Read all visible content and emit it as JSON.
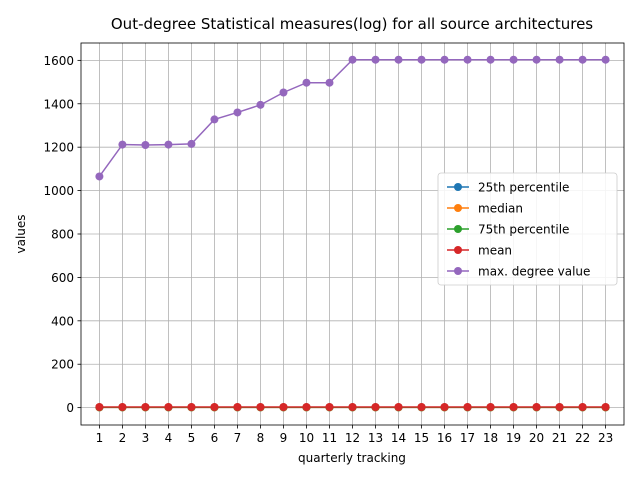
{
  "chart_data": {
    "type": "line",
    "title": "Out-degree Statistical measures(log) for all source architectures",
    "xlabel": "quarterly tracking",
    "ylabel": "values",
    "x": [
      1,
      2,
      3,
      4,
      5,
      6,
      7,
      8,
      9,
      10,
      11,
      12,
      13,
      14,
      15,
      16,
      17,
      18,
      19,
      20,
      21,
      22,
      23
    ],
    "xlim": [
      0.2,
      23.8
    ],
    "ylim": [
      -80,
      1680
    ],
    "yticks": [
      0,
      200,
      400,
      600,
      800,
      1000,
      1200,
      1400,
      1600
    ],
    "grid": true,
    "legend_position": "center-right",
    "series": [
      {
        "name": "25th percentile",
        "color": "#1f77b4",
        "values": [
          1,
          1,
          1,
          1,
          1,
          1,
          1,
          1,
          1,
          1,
          1,
          1,
          1,
          1,
          1,
          1,
          1,
          1,
          1,
          1,
          1,
          1,
          1
        ]
      },
      {
        "name": "median",
        "color": "#ff7f0e",
        "values": [
          1,
          1,
          1,
          1,
          1,
          1,
          1,
          1,
          1,
          1,
          1,
          1,
          1,
          1,
          1,
          1,
          1,
          1,
          1,
          1,
          1,
          1,
          1
        ]
      },
      {
        "name": "75th percentile",
        "color": "#2ca02c",
        "values": [
          2,
          2,
          2,
          2,
          2,
          2,
          2,
          2,
          2,
          2,
          2,
          2,
          2,
          2,
          2,
          2,
          2,
          2,
          2,
          2,
          2,
          2,
          2
        ]
      },
      {
        "name": "mean",
        "color": "#d62728",
        "values": [
          3,
          3,
          3,
          3,
          3,
          3,
          3,
          3,
          3,
          3,
          3,
          3,
          3,
          3,
          3,
          3,
          3,
          3,
          3,
          3,
          3,
          3,
          3
        ]
      },
      {
        "name": "max. degree value",
        "color": "#9467bd",
        "values": [
          1065,
          1212,
          1210,
          1212,
          1215,
          1328,
          1360,
          1395,
          1452,
          1497,
          1497,
          1603,
          1603,
          1603,
          1603,
          1603,
          1603,
          1603,
          1603,
          1603,
          1603,
          1603,
          1603
        ]
      }
    ]
  }
}
